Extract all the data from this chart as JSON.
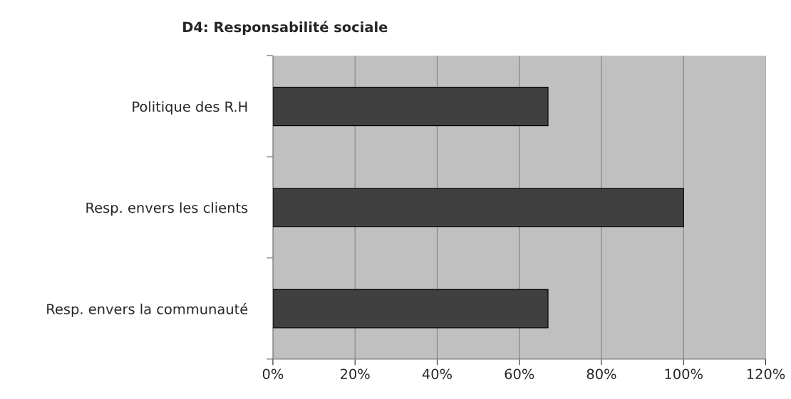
{
  "chart_data": {
    "type": "bar",
    "orientation": "horizontal",
    "title": "D4: Responsabilité sociale",
    "categories": [
      "Politique des R.H",
      "Resp. envers les clients",
      "Resp. envers la communauté"
    ],
    "values": [
      67,
      100,
      67
    ],
    "color": "#404040",
    "xlim": [
      0,
      120
    ],
    "xticks": [
      {
        "value": 0,
        "label": "0%"
      },
      {
        "value": 20,
        "label": "20%"
      },
      {
        "value": 40,
        "label": "40%"
      },
      {
        "value": 60,
        "label": "60%"
      },
      {
        "value": 80,
        "label": "80%"
      },
      {
        "value": 100,
        "label": "100%"
      },
      {
        "value": 120,
        "label": "120%"
      }
    ],
    "grid": "x",
    "legend": false
  }
}
